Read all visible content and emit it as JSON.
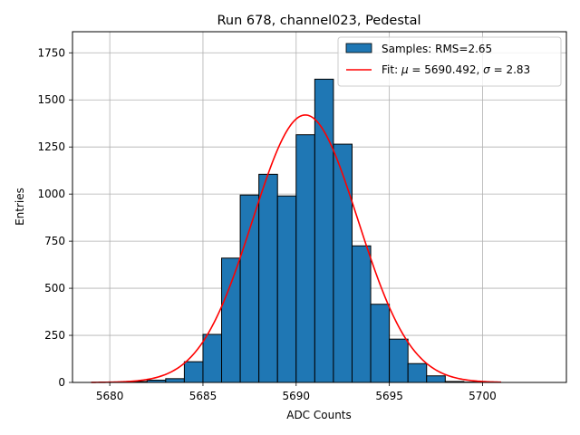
{
  "chart_data": {
    "type": "bar",
    "title": "Run 678, channel023, Pedestal",
    "xlabel": "ADC Counts",
    "ylabel": "Entries",
    "xlim": [
      5678,
      5704.5
    ],
    "ylim": [
      0,
      1862
    ],
    "xticks": [
      5680,
      5685,
      5690,
      5695,
      5700
    ],
    "xtick_labels": [
      "5680",
      "5685",
      "5690",
      "5695",
      "5700"
    ],
    "yticks": [
      0,
      250,
      500,
      750,
      1000,
      1250,
      1500,
      1750
    ],
    "ytick_labels": [
      "0",
      "250",
      "500",
      "750",
      "1000",
      "1250",
      "1500",
      "1750"
    ],
    "grid": true,
    "legend_position": "top-right",
    "bin_width": 1,
    "bins": [
      {
        "left": 5679,
        "value": 0
      },
      {
        "left": 5680,
        "value": 2
      },
      {
        "left": 5681,
        "value": 5
      },
      {
        "left": 5682,
        "value": 12
      },
      {
        "left": 5683,
        "value": 20
      },
      {
        "left": 5684,
        "value": 110
      },
      {
        "left": 5685,
        "value": 255
      },
      {
        "left": 5686,
        "value": 660
      },
      {
        "left": 5687,
        "value": 995
      },
      {
        "left": 5688,
        "value": 1105
      },
      {
        "left": 5689,
        "value": 990
      },
      {
        "left": 5690,
        "value": 1315
      },
      {
        "left": 5691,
        "value": 1610
      },
      {
        "left": 5692,
        "value": 1265
      },
      {
        "left": 5693,
        "value": 725
      },
      {
        "left": 5694,
        "value": 415
      },
      {
        "left": 5695,
        "value": 230
      },
      {
        "left": 5696,
        "value": 100
      },
      {
        "left": 5697,
        "value": 35
      },
      {
        "left": 5698,
        "value": 5
      },
      {
        "left": 5699,
        "value": 2
      }
    ],
    "series": [
      {
        "name": "Samples: RMS=2.65",
        "kind": "histogram",
        "color": "#1f77b4",
        "edgecolor": "#000000"
      },
      {
        "name": "Fit: μ = 5690.492, σ = 2.83",
        "kind": "gaussian",
        "color": "#ff0000",
        "amplitude": 1420,
        "mu": 5690.492,
        "sigma": 2.83,
        "x_range": [
          5679,
          5701
        ]
      }
    ],
    "legend": {
      "samples_prefix": "Samples: RMS=2.65",
      "fit_prefix": "Fit: ",
      "fit_mu_sym": "μ",
      "fit_mid": " = 5690.492, ",
      "fit_sigma_sym": "σ",
      "fit_suffix": " = 2.83"
    }
  }
}
